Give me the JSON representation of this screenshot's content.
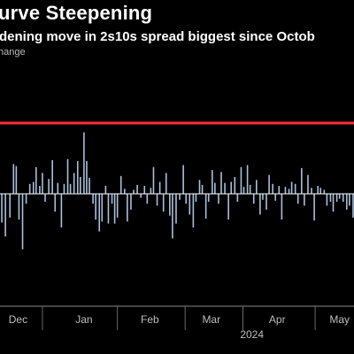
{
  "header": {
    "title": "urve Steepening",
    "subtitle": "dening move in 2s10s spread biggest since Octob",
    "ylabel": "hange"
  },
  "chart_data": {
    "type": "bar",
    "title": "urve Steepening",
    "subtitle": "dening move in 2s10s spread biggest since Octob",
    "ylabel": "hange",
    "xlabel": "",
    "ylim": [
      -4,
      4
    ],
    "colors": {
      "bars": "#a9bfdc",
      "reference_line": "#ff2b3a",
      "zero_line": "#ffffff",
      "text": "#bdbdbd",
      "background": "#000000"
    },
    "grid": false,
    "reference_line": {
      "value": 3.57,
      "color": "#ff2b3a"
    },
    "x_tick_labels": [
      {
        "label": "Dec",
        "day": 20
      },
      {
        "label": "Jan",
        "day": 93
      },
      {
        "label": "Feb",
        "day": 166
      },
      {
        "label": "Mar",
        "day": 234
      },
      {
        "label": "Apr",
        "day": 307
      },
      {
        "label": "May",
        "day": 376
      }
    ],
    "x_secondary_labels": [
      {
        "label": "2024",
        "day": 279
      }
    ],
    "x_month_dividers": [
      47,
      130,
      205,
      269,
      349
    ],
    "x_days": [
      0,
      392
    ],
    "bars": [
      {
        "day": -3,
        "value": -2.1
      },
      {
        "day": 2,
        "value": -1.45
      },
      {
        "day": 6,
        "value": -2.15
      },
      {
        "day": 11,
        "value": -1.2
      },
      {
        "day": 15,
        "value": 1.5
      },
      {
        "day": 18,
        "value": 1.4
      },
      {
        "day": 21,
        "value": -1.3
      },
      {
        "day": 25,
        "value": -2.8
      },
      {
        "day": 29,
        "value": -0.5
      },
      {
        "day": 33,
        "value": 0.5
      },
      {
        "day": 37,
        "value": 0.6
      },
      {
        "day": 40,
        "value": 1.35
      },
      {
        "day": 44,
        "value": 0.4
      },
      {
        "day": 47,
        "value": 1.05
      },
      {
        "day": 50,
        "value": -0.4
      },
      {
        "day": 54,
        "value": 0.75
      },
      {
        "day": 58,
        "value": 1.7
      },
      {
        "day": 61,
        "value": -0.9
      },
      {
        "day": 64,
        "value": 0.55
      },
      {
        "day": 68,
        "value": -1.7
      },
      {
        "day": 71,
        "value": 0.5
      },
      {
        "day": 75,
        "value": 1.75
      },
      {
        "day": 78,
        "value": 0.5
      },
      {
        "day": 82,
        "value": 1.05
      },
      {
        "day": 86,
        "value": 1.65
      },
      {
        "day": 89,
        "value": 0.85
      },
      {
        "day": 93,
        "value": 3.1
      },
      {
        "day": 96,
        "value": 1.65
      },
      {
        "day": 99,
        "value": 0.8
      },
      {
        "day": 103,
        "value": -0.5
      },
      {
        "day": 106,
        "value": -1.3
      },
      {
        "day": 110,
        "value": -1.9
      },
      {
        "day": 113,
        "value": -1.4
      },
      {
        "day": 117,
        "value": 0.4
      },
      {
        "day": 120,
        "value": -1.5
      },
      {
        "day": 124,
        "value": -0.5
      },
      {
        "day": 127,
        "value": -1.5
      },
      {
        "day": 130,
        "value": -1.2
      },
      {
        "day": 134,
        "value": 0.9
      },
      {
        "day": 138,
        "value": 0.25
      },
      {
        "day": 141,
        "value": -1.4
      },
      {
        "day": 145,
        "value": -0.8
      },
      {
        "day": 148,
        "value": 0.2
      },
      {
        "day": 152,
        "value": 0.45
      },
      {
        "day": 156,
        "value": -0.2
      },
      {
        "day": 160,
        "value": 0.4
      },
      {
        "day": 163,
        "value": -0.5
      },
      {
        "day": 167,
        "value": 0.3
      },
      {
        "day": 170,
        "value": 1.35
      },
      {
        "day": 174,
        "value": -0.6
      },
      {
        "day": 177,
        "value": 0.6
      },
      {
        "day": 181,
        "value": -0.9
      },
      {
        "day": 184,
        "value": 1.05
      },
      {
        "day": 188,
        "value": -1.1
      },
      {
        "day": 191,
        "value": -2.25
      },
      {
        "day": 195,
        "value": -1.5
      },
      {
        "day": 199,
        "value": -0.3
      },
      {
        "day": 203,
        "value": 1.45
      },
      {
        "day": 206,
        "value": -0.5
      },
      {
        "day": 210,
        "value": -1.05
      },
      {
        "day": 214,
        "value": -1.7
      },
      {
        "day": 217,
        "value": -0.4
      },
      {
        "day": 221,
        "value": 0.7
      },
      {
        "day": 224,
        "value": 0.45
      },
      {
        "day": 228,
        "value": -1.25
      },
      {
        "day": 231,
        "value": -0.4
      },
      {
        "day": 235,
        "value": 1.2
      },
      {
        "day": 238,
        "value": 0.55
      },
      {
        "day": 242,
        "value": -0.5
      },
      {
        "day": 245,
        "value": 1.1
      },
      {
        "day": 249,
        "value": 0.55
      },
      {
        "day": 253,
        "value": -1.3
      },
      {
        "day": 256,
        "value": 0.6
      },
      {
        "day": 260,
        "value": 0.85
      },
      {
        "day": 263,
        "value": -0.4
      },
      {
        "day": 267,
        "value": 1.35
      },
      {
        "day": 270,
        "value": 0.35
      },
      {
        "day": 274,
        "value": 1.45
      },
      {
        "day": 277,
        "value": 0.45
      },
      {
        "day": 281,
        "value": -0.5
      },
      {
        "day": 284,
        "value": 0.7
      },
      {
        "day": 288,
        "value": -1.05
      },
      {
        "day": 291,
        "value": -0.3
      },
      {
        "day": 295,
        "value": -0.8
      },
      {
        "day": 298,
        "value": 0.95
      },
      {
        "day": 302,
        "value": 0.5
      },
      {
        "day": 305,
        "value": -0.35
      },
      {
        "day": 309,
        "value": 0.4
      },
      {
        "day": 312,
        "value": -1.3
      },
      {
        "day": 316,
        "value": 0.35
      },
      {
        "day": 320,
        "value": 0.25
      },
      {
        "day": 323,
        "value": 0.6
      },
      {
        "day": 327,
        "value": 0.5
      },
      {
        "day": 330,
        "value": -0.5
      },
      {
        "day": 334,
        "value": 1.3
      },
      {
        "day": 337,
        "value": -0.6
      },
      {
        "day": 341,
        "value": 0.95
      },
      {
        "day": 345,
        "value": 0.3
      },
      {
        "day": 348,
        "value": -1.35
      },
      {
        "day": 352,
        "value": 0.4
      },
      {
        "day": 355,
        "value": 0.3
      },
      {
        "day": 359,
        "value": 0.2
      },
      {
        "day": 362,
        "value": -0.6
      },
      {
        "day": 366,
        "value": -0.4
      },
      {
        "day": 369,
        "value": -0.9
      },
      {
        "day": 373,
        "value": -0.4
      },
      {
        "day": 376,
        "value": -0.25
      },
      {
        "day": 380,
        "value": -0.4
      },
      {
        "day": 384,
        "value": -0.8
      },
      {
        "day": 387,
        "value": -0.6
      },
      {
        "day": 391,
        "value": -1.2
      },
      {
        "day": 394,
        "value": -0.3
      },
      {
        "day": 397,
        "value": 0.4
      }
    ]
  }
}
